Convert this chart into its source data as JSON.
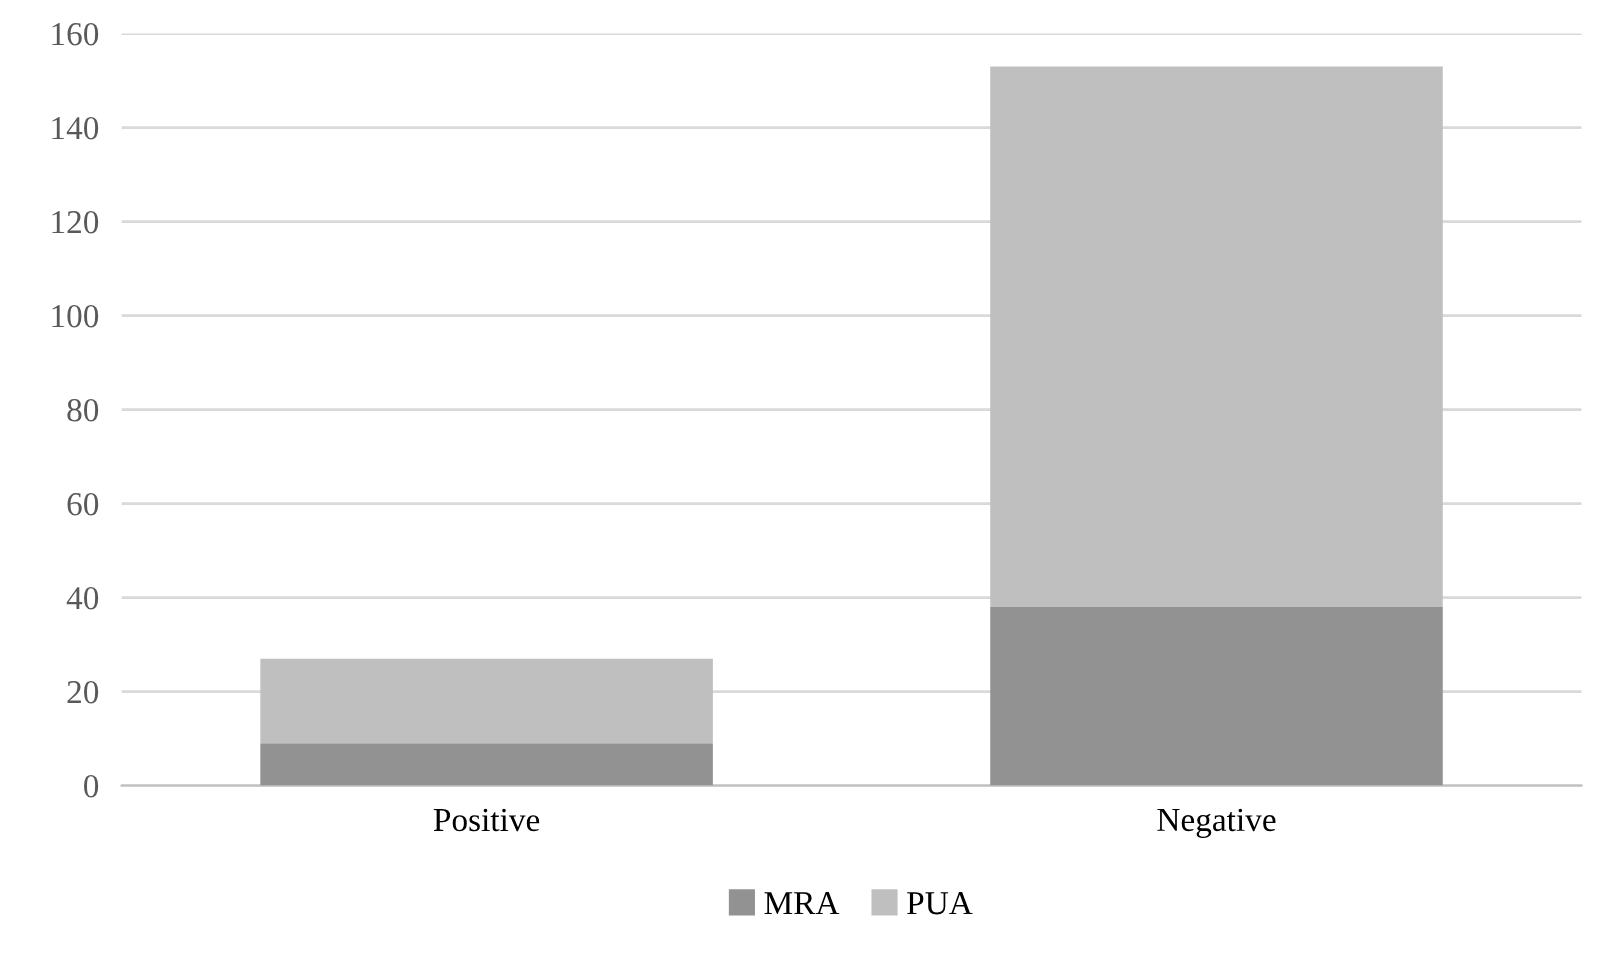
{
  "chart_data": {
    "type": "bar",
    "stacked": true,
    "categories": [
      "Positive",
      "Negative"
    ],
    "series": [
      {
        "name": "MRA",
        "color": "#929292",
        "values": [
          9,
          38
        ]
      },
      {
        "name": "PUA",
        "color": "#bfbfbf",
        "values": [
          18,
          115
        ]
      }
    ],
    "ylim": [
      0,
      160
    ],
    "yticks": [
      0,
      20,
      40,
      60,
      80,
      100,
      120,
      140,
      160
    ],
    "grid": "y",
    "legend": "bottom"
  }
}
